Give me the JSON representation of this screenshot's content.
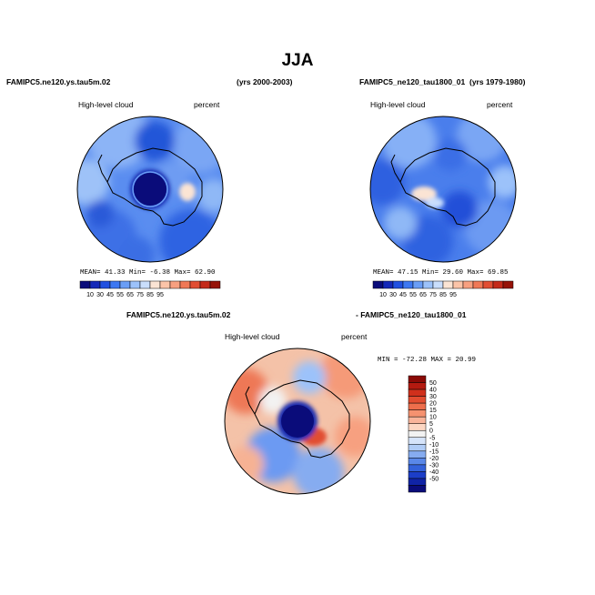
{
  "title": "JJA",
  "panels": [
    {
      "case_label": "FAMIPC5.ne120.ys.tau5m.02",
      "years_label": "(yrs 2000-2003)",
      "variable": "High-level cloud",
      "units": "percent",
      "stats": "MEAN=  41.33  Min=  -6.38  Max=  62.90",
      "colorbar_ticks": [
        "10",
        "30",
        "45",
        "55",
        "65",
        "75",
        "85",
        "95"
      ],
      "colorbar_colors": [
        "#0a0c7a",
        "#1428b8",
        "#2050e0",
        "#3d78f2",
        "#6a9ef6",
        "#9cc2fa",
        "#c9defc",
        "#fbe4d4",
        "#fbc4a8",
        "#f7a080",
        "#ef7856",
        "#e14e33",
        "#c42a1a",
        "#961308"
      ]
    },
    {
      "case_label": "FAMIPC5_ne120_tau1800_01",
      "years_label": "(yrs 1979-1980)",
      "variable": "High-level cloud",
      "units": "percent",
      "stats": "MEAN=  47.15  Min=  29.60  Max=  69.85",
      "colorbar_ticks": [
        "10",
        "30",
        "45",
        "55",
        "65",
        "75",
        "85",
        "95"
      ],
      "colorbar_colors": [
        "#0a0c7a",
        "#1428b8",
        "#2050e0",
        "#3d78f2",
        "#6a9ef6",
        "#9cc2fa",
        "#c9defc",
        "#fbe4d4",
        "#fbc4a8",
        "#f7a080",
        "#ef7856",
        "#e14e33",
        "#c42a1a",
        "#961308"
      ]
    },
    {
      "case_label_left": "FAMIPC5.ne120.ys.tau5m.02",
      "case_label_right": "- FAMIPC5_ne120_tau1800_01",
      "variable": "High-level cloud",
      "units": "percent",
      "stats": "MIN = -72.28  MAX =  20.99",
      "colorbar_ticks": [
        "50",
        "40",
        "30",
        "20",
        "15",
        "10",
        "5",
        "0",
        "-5",
        "-10",
        "-15",
        "-20",
        "-30",
        "-40",
        "-50"
      ],
      "colorbar_colors": [
        "#8a0a06",
        "#b41a10",
        "#d0301c",
        "#e24c30",
        "#ee6e4c",
        "#f59270",
        "#f9b49a",
        "#fcd6c2",
        "#f2f2f2",
        "#d6e4fa",
        "#b0ccf6",
        "#86acf0",
        "#5a88e8",
        "#3462da",
        "#1c3ec8",
        "#1024a6",
        "#0a0c7a"
      ]
    }
  ]
}
